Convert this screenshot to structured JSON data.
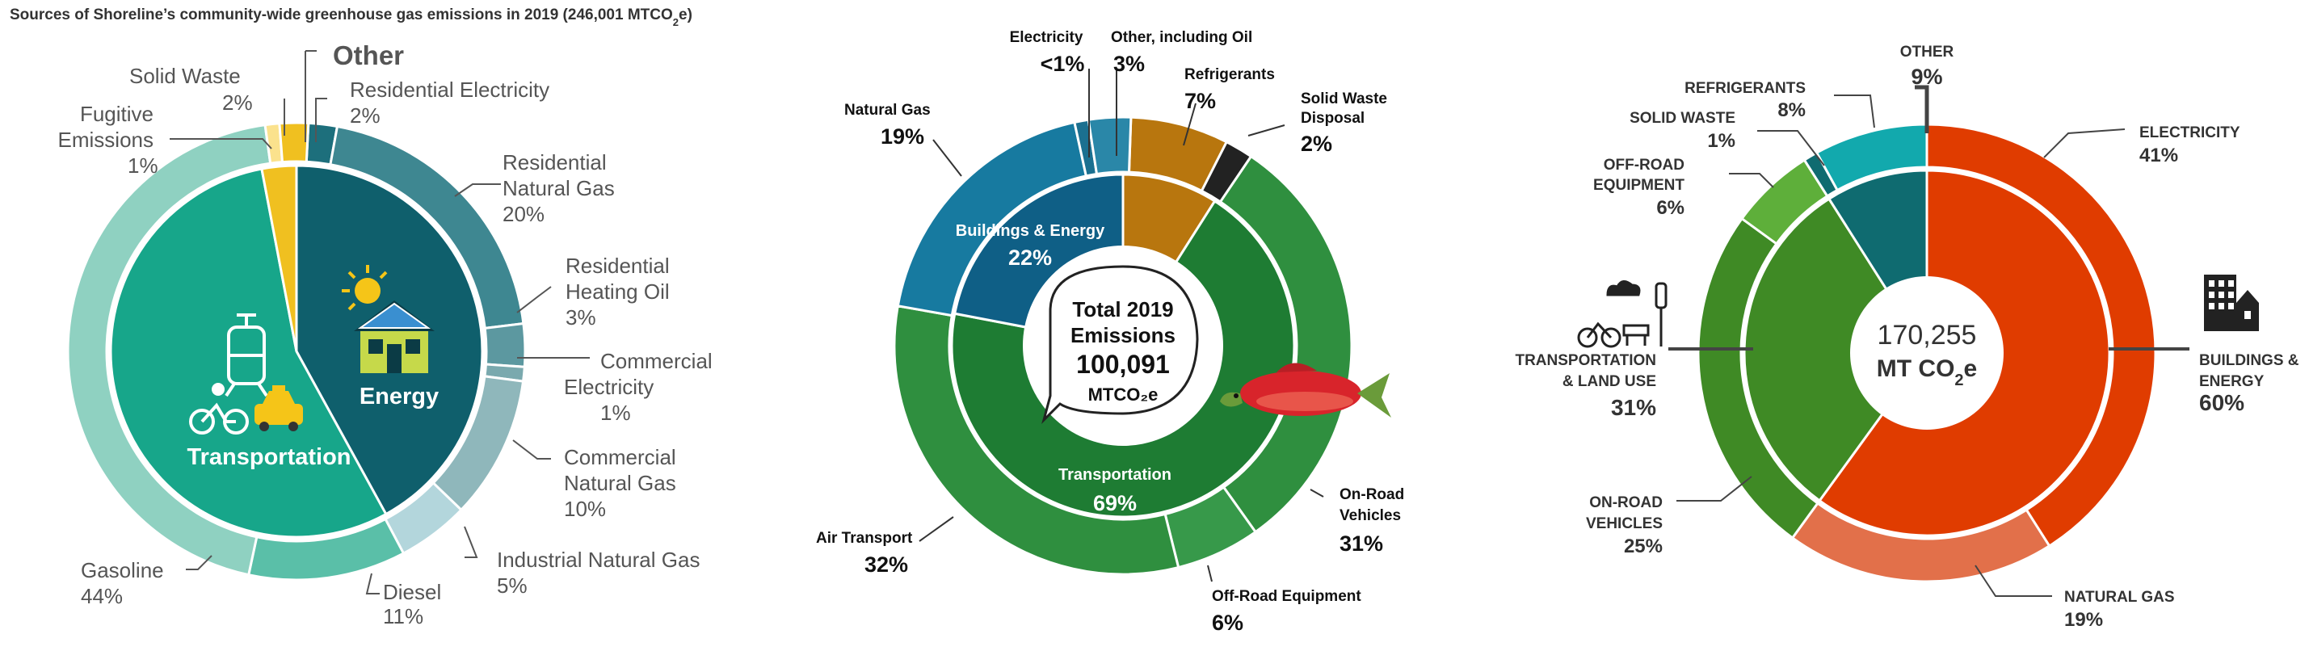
{
  "chart_data": [
    {
      "type": "pie",
      "title": "Sources of Shoreline’s community-wide greenhouse gas emissions in 2019 (246,001 MTCO",
      "title_sub": "2",
      "title_suffix": "e)",
      "inner_ring": [
        {
          "label": "Transportation",
          "value": 55,
          "color": "#17a68a"
        },
        {
          "label": "Other",
          "value": 3,
          "color": "#f0c020"
        },
        {
          "label": "Energy",
          "value": 42,
          "color": "#0f5f6c"
        }
      ],
      "outer_ring": [
        {
          "label": "Residential Electricity",
          "pct": "2%",
          "value": 2,
          "color": "#1d6f7c"
        },
        {
          "label": "Residential Natural Gas",
          "pct": "20%",
          "value": 20,
          "color": "#3e8791"
        },
        {
          "label": "Residential Heating Oil",
          "pct": "3%",
          "value": 3,
          "color": "#5c98a0"
        },
        {
          "label": "Commercial Electricity",
          "pct": "1%",
          "value": 1,
          "color": "#7aa9ae"
        },
        {
          "label": "Commercial Natural Gas",
          "pct": "10%",
          "value": 10,
          "color": "#8fb7bb"
        },
        {
          "label": "Industrial Natural Gas",
          "pct": "5%",
          "value": 5,
          "color": "#b3d6dc"
        },
        {
          "label": "Diesel",
          "pct": "11%",
          "value": 11,
          "color": "#5abfa8"
        },
        {
          "label": "Gasoline",
          "pct": "44%",
          "value": 44,
          "color": "#8fd1c1"
        },
        {
          "label": "Fugitive Emissions",
          "pct": "1%",
          "value": 1,
          "color": "#fbe28d"
        },
        {
          "label": "Solid Waste",
          "pct": "2%",
          "value": 2,
          "color": "#f0c020"
        }
      ],
      "other_label": "Other",
      "center_labels": [
        "Transportation",
        "Energy"
      ]
    },
    {
      "type": "pie",
      "center_title": [
        "Total 2019",
        "Emissions"
      ],
      "center_value": "100,091",
      "center_unit": "MTCO₂e",
      "inner_ring": [
        {
          "label": "Transportation",
          "pct": "69%",
          "value": 69,
          "color": "#1e7c33"
        },
        {
          "label": "Other",
          "value": 9,
          "color": "#b8760e"
        },
        {
          "label": "Buildings & Energy",
          "pct": "22%",
          "value": 22,
          "color": "#0f5f86"
        }
      ],
      "outer_ring": [
        {
          "label": "Electricity",
          "pct": "<1%",
          "value": 1,
          "color": "#1b7090"
        },
        {
          "label": "Other, including Oil",
          "pct": "3%",
          "value": 3,
          "color": "#2a87a8"
        },
        {
          "label": "Refrigerants",
          "pct": "7%",
          "value": 7,
          "color": "#b8760e"
        },
        {
          "label": "Solid Waste Disposal",
          "pct": "2%",
          "value": 2,
          "color": "#222222"
        },
        {
          "label": "On-Road Vehicles",
          "pct": "31%",
          "value": 31,
          "color": "#2f8f3f"
        },
        {
          "label": "Off-Road Equipment",
          "pct": "6%",
          "value": 6,
          "color": "#37994a"
        },
        {
          "label": "Air Transport",
          "pct": "32%",
          "value": 32,
          "color": "#2f8f3f"
        },
        {
          "label": "Natural Gas",
          "pct": "19%",
          "value": 19,
          "color": "#177aa0"
        }
      ]
    },
    {
      "type": "pie",
      "center_value": "170,255",
      "center_unit": "MT CO",
      "center_unit_sub": "2",
      "center_unit_suffix": "e",
      "inner_ring": [
        {
          "label": "BUILDINGS & ENERGY",
          "pct": "60%",
          "value": 60,
          "color": "#e03c00"
        },
        {
          "label": "TRANSPORTATION & LAND USE",
          "pct": "31%",
          "value": 31,
          "color": "#3f8a25"
        },
        {
          "label": "OTHER",
          "pct": "9%",
          "value": 9,
          "color": "#0f6b70"
        }
      ],
      "outer_ring": [
        {
          "label": "ELECTRICITY",
          "pct": "41%",
          "value": 41,
          "color": "#e03c00"
        },
        {
          "label": "NATURAL GAS",
          "pct": "19%",
          "value": 19,
          "color": "#e2704a"
        },
        {
          "label": "ON-ROAD VEHICLES",
          "pct": "25%",
          "value": 25,
          "color": "#3f8a25"
        },
        {
          "label": "OFF-ROAD EQUIPMENT",
          "pct": "6%",
          "value": 6,
          "color": "#5eaf3a"
        },
        {
          "label": "SOLID WASTE",
          "pct": "1%",
          "value": 1,
          "color": "#0f6b70"
        },
        {
          "label": "REFRIGERANTS",
          "pct": "8%",
          "value": 8,
          "color": "#12a9ad"
        }
      ]
    }
  ]
}
